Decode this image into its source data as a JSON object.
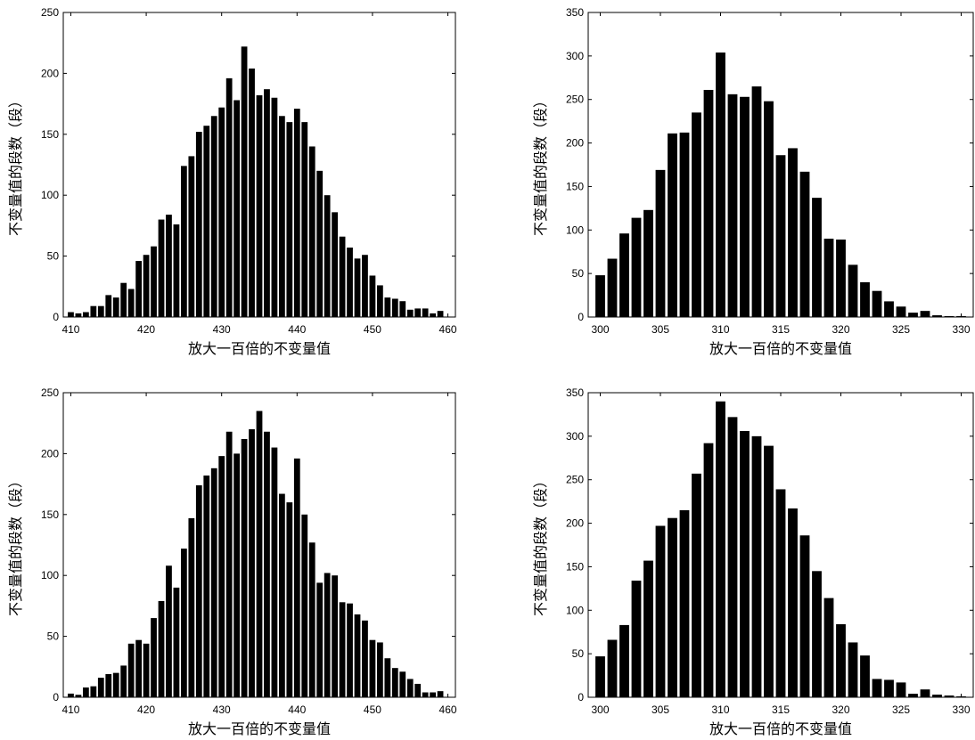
{
  "chart_data": [
    {
      "type": "bar",
      "xlabel": "放大一百倍的不变量值",
      "ylabel": "不变量值的段数（段）",
      "xlim": [
        409,
        461
      ],
      "ylim": [
        0,
        250
      ],
      "xticks": [
        410,
        420,
        430,
        440,
        450,
        460
      ],
      "yticks": [
        0,
        50,
        100,
        150,
        200,
        250
      ],
      "x": [
        410,
        411,
        412,
        413,
        414,
        415,
        416,
        417,
        418,
        419,
        420,
        421,
        422,
        423,
        424,
        425,
        426,
        427,
        428,
        429,
        430,
        431,
        432,
        433,
        434,
        435,
        436,
        437,
        438,
        439,
        440,
        441,
        442,
        443,
        444,
        445,
        446,
        447,
        448,
        449,
        450,
        451,
        452,
        453,
        454,
        455,
        456,
        457,
        458,
        459
      ],
      "values": [
        4,
        3,
        4,
        9,
        9,
        18,
        16,
        28,
        23,
        46,
        51,
        58,
        80,
        84,
        76,
        124,
        132,
        152,
        157,
        165,
        172,
        196,
        178,
        222,
        204,
        182,
        187,
        180,
        165,
        160,
        171,
        160,
        140,
        120,
        100,
        86,
        66,
        57,
        48,
        51,
        34,
        26,
        16,
        15,
        13,
        6,
        7,
        7,
        3,
        5
      ]
    },
    {
      "type": "bar",
      "xlabel": "放大一百倍的不变量值",
      "ylabel": "不变量值的段数（段）",
      "xlim": [
        299,
        331
      ],
      "ylim": [
        0,
        350
      ],
      "xticks": [
        300,
        305,
        310,
        315,
        320,
        325,
        330
      ],
      "yticks": [
        0,
        50,
        100,
        150,
        200,
        250,
        300,
        350
      ],
      "x": [
        300,
        301,
        302,
        303,
        304,
        305,
        306,
        307,
        308,
        309,
        310,
        311,
        312,
        313,
        314,
        315,
        316,
        317,
        318,
        319,
        320,
        321,
        322,
        323,
        324,
        325,
        326,
        327,
        328,
        329,
        330
      ],
      "values": [
        48,
        67,
        96,
        114,
        123,
        169,
        211,
        212,
        235,
        261,
        304,
        256,
        253,
        265,
        248,
        186,
        194,
        167,
        137,
        90,
        89,
        60,
        40,
        30,
        18,
        12,
        5,
        7,
        2,
        1,
        1
      ]
    },
    {
      "type": "bar",
      "xlabel": "放大一百倍的不变量值",
      "ylabel": "不变量值的段数（段）",
      "xlim": [
        409,
        461
      ],
      "ylim": [
        0,
        250
      ],
      "xticks": [
        410,
        420,
        430,
        440,
        450,
        460
      ],
      "yticks": [
        0,
        50,
        100,
        150,
        200,
        250
      ],
      "x": [
        410,
        411,
        412,
        413,
        414,
        415,
        416,
        417,
        418,
        419,
        420,
        421,
        422,
        423,
        424,
        425,
        426,
        427,
        428,
        429,
        430,
        431,
        432,
        433,
        434,
        435,
        436,
        437,
        438,
        439,
        440,
        441,
        442,
        443,
        444,
        445,
        446,
        447,
        448,
        449,
        450,
        451,
        452,
        453,
        454,
        455,
        456,
        457,
        458,
        459
      ],
      "values": [
        3,
        2,
        8,
        9,
        16,
        19,
        20,
        26,
        44,
        47,
        44,
        65,
        79,
        108,
        90,
        122,
        147,
        174,
        182,
        188,
        198,
        218,
        200,
        212,
        220,
        235,
        218,
        205,
        167,
        160,
        196,
        150,
        127,
        94,
        102,
        100,
        78,
        77,
        68,
        63,
        47,
        45,
        32,
        24,
        21,
        15,
        11,
        4,
        4,
        5
      ]
    },
    {
      "type": "bar",
      "xlabel": "放大一百倍的不变量值",
      "ylabel": "不变量值的段数（段）",
      "xlim": [
        299,
        331
      ],
      "ylim": [
        0,
        350
      ],
      "xticks": [
        300,
        305,
        310,
        315,
        320,
        325,
        330
      ],
      "yticks": [
        0,
        50,
        100,
        150,
        200,
        250,
        300,
        350
      ],
      "x": [
        300,
        301,
        302,
        303,
        304,
        305,
        306,
        307,
        308,
        309,
        310,
        311,
        312,
        313,
        314,
        315,
        316,
        317,
        318,
        319,
        320,
        321,
        322,
        323,
        324,
        325,
        326,
        327,
        328,
        329,
        330
      ],
      "values": [
        47,
        66,
        83,
        134,
        157,
        197,
        206,
        215,
        257,
        292,
        340,
        322,
        306,
        300,
        289,
        239,
        217,
        186,
        145,
        114,
        84,
        63,
        48,
        21,
        20,
        17,
        4,
        9,
        3,
        2,
        1
      ]
    }
  ]
}
